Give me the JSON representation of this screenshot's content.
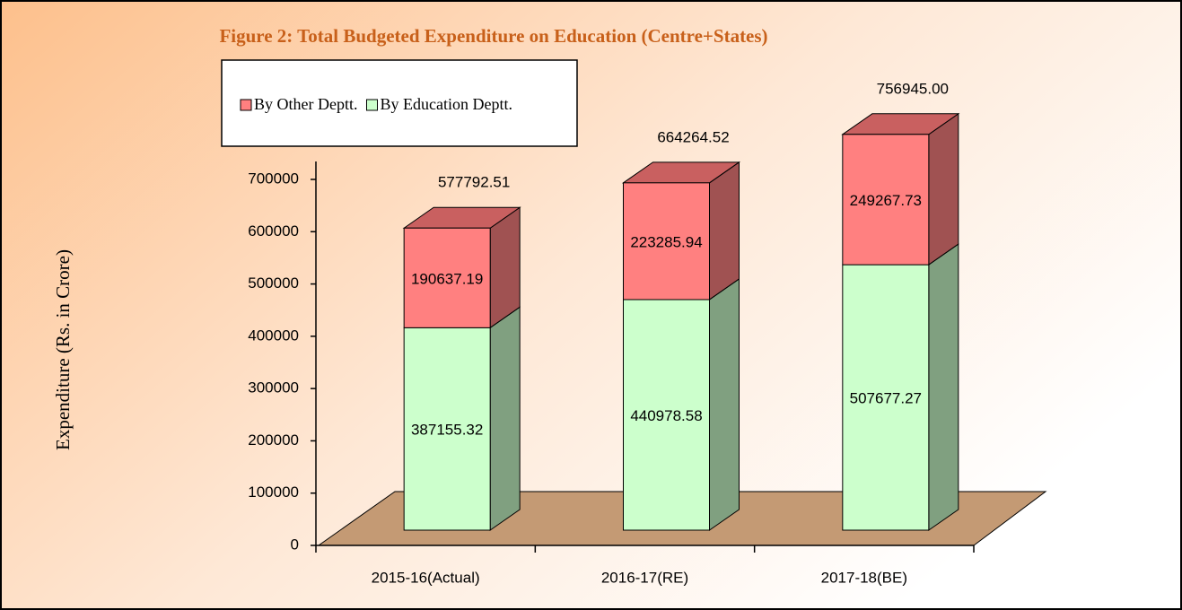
{
  "chart_data": {
    "type": "bar3d_stacked",
    "title": "Figure 2: Total Budgeted Expenditure on Education (Centre+States)",
    "y_label": "Expenditure (Rs. in Crore)",
    "categories": [
      "2015-16(Actual)",
      "2016-17(RE)",
      "2017-18(BE)"
    ],
    "series": [
      {
        "name": "By Education Deptt.",
        "color": "#ccffcc",
        "side_color": "#80a080",
        "values": [
          387155.32,
          440978.58,
          507677.27
        ]
      },
      {
        "name": "By Other Deptt.",
        "color": "#ff8080",
        "side_color": "#a05252",
        "top_color": "#c96060",
        "values": [
          190637.19,
          223285.94,
          249267.73
        ]
      }
    ],
    "totals": {
      "values": [
        577792.51,
        664264.52,
        756945
      ],
      "value_labels": [
        "577792.51",
        "664264.52",
        "756945.00"
      ]
    },
    "ylim": [
      0,
      700000
    ],
    "yticks": [
      0,
      100000,
      200000,
      300000,
      400000,
      500000,
      600000,
      700000
    ],
    "legend": "top-left",
    "floor_color": "#c49a74"
  }
}
